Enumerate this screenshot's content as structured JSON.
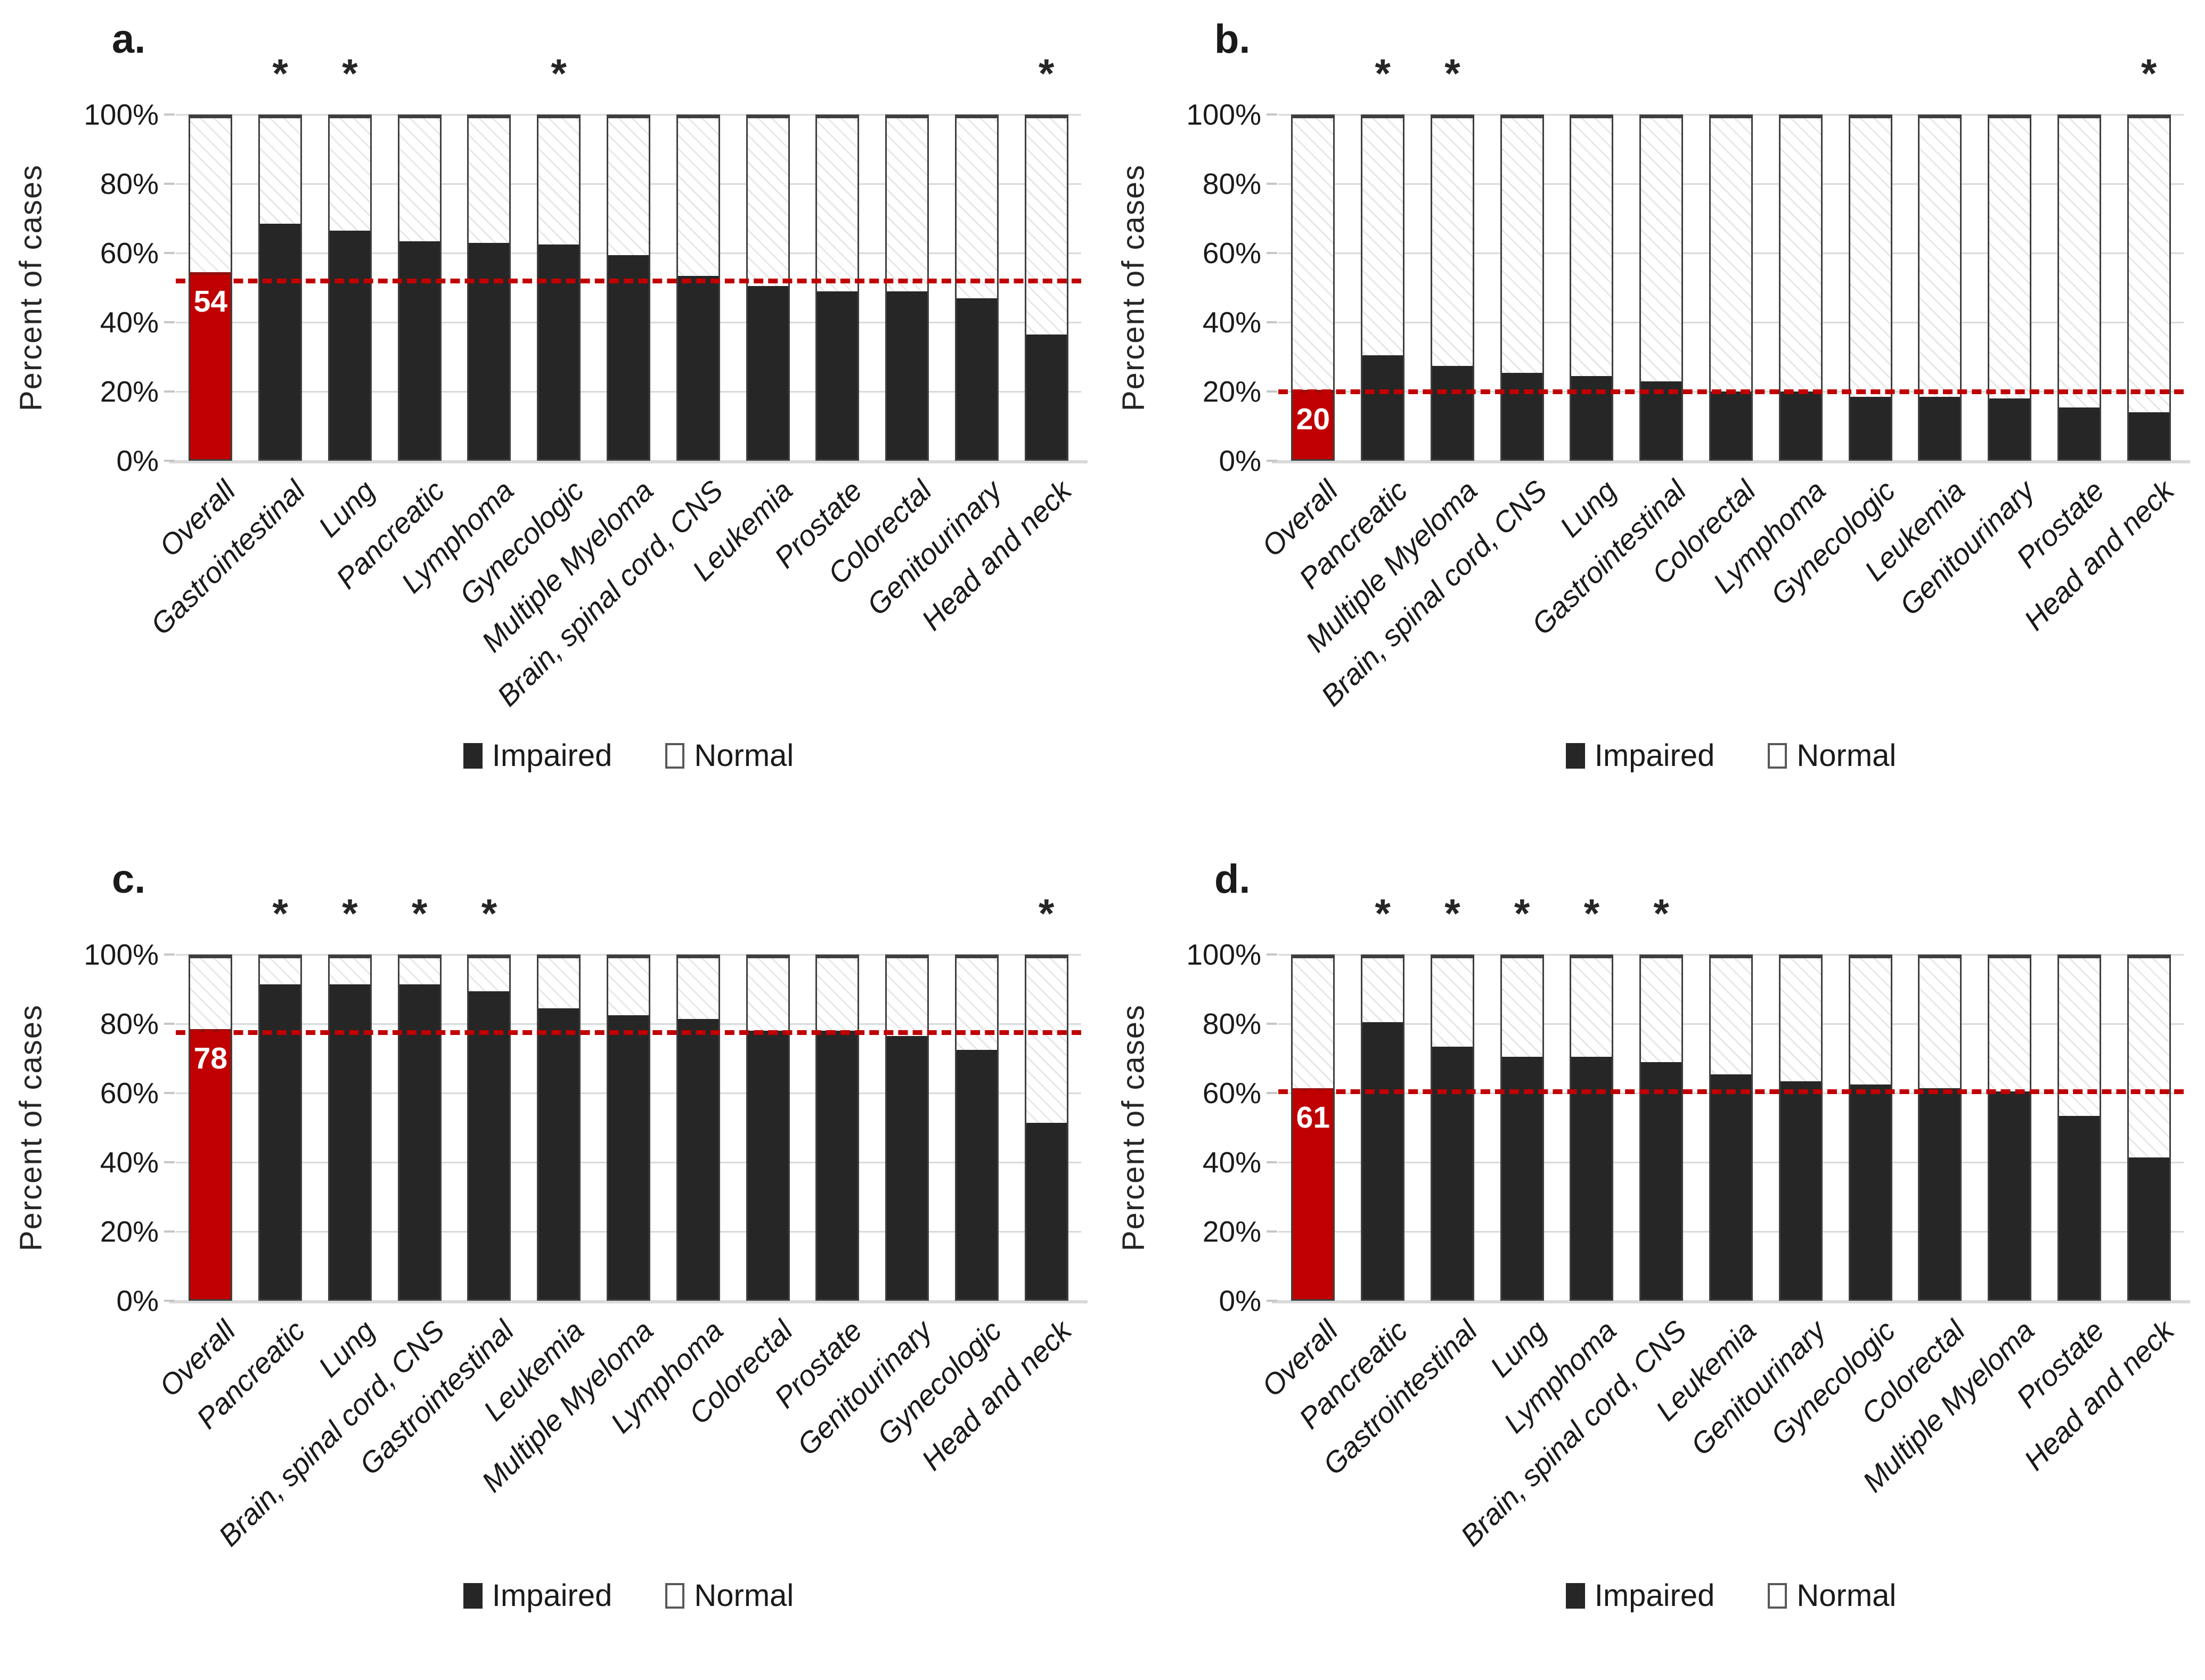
{
  "figure": {
    "ylabel": "Percent of cases",
    "ytick_pcts": [
      0,
      20,
      40,
      60,
      80,
      100
    ],
    "ytick_labels": [
      "0%",
      "20%",
      "40%",
      "60%",
      "80%",
      "100%"
    ],
    "sig_marker": "*",
    "colors": {
      "impaired": "#262626",
      "overall_bar": "#c00000",
      "reference_line": "#c00000",
      "gridline": "#d9d9d9",
      "hatch_stroke": "#e7e7e7",
      "bar_border": "#3f3f3f"
    }
  },
  "chart_data": [
    {
      "type": "bar",
      "panel_label": "a.",
      "stacked": true,
      "ylabel": "Percent of cases",
      "ylim": [
        0,
        100
      ],
      "legend": [
        "Impaired",
        "Normal"
      ],
      "legend_position": "bottom",
      "grid": true,
      "categories": [
        "Overall",
        "Gastrointestinal",
        "Lung",
        "Pancreatic",
        "Lymphoma",
        "Gynecologic",
        "Multiple Myeloma",
        "Brain, spinal cord, CNS",
        "Leukemia",
        "Prostate",
        "Colorectal",
        "Genitourinary",
        "Head and neck"
      ],
      "impaired_pct": [
        54,
        68,
        66,
        63,
        62.5,
        62,
        59,
        53,
        50,
        48.5,
        48.5,
        46.5,
        36
      ],
      "normal_pct_note": "normal = 100 - impaired",
      "significant": [
        false,
        true,
        true,
        false,
        false,
        true,
        false,
        false,
        false,
        false,
        false,
        false,
        true
      ],
      "overall_value_label": "54",
      "dashed_reference_pct": 52
    },
    {
      "type": "bar",
      "panel_label": "b.",
      "stacked": true,
      "ylabel": "Percent of cases",
      "ylim": [
        0,
        100
      ],
      "legend": [
        "Impaired",
        "Normal"
      ],
      "legend_position": "bottom",
      "grid": true,
      "categories": [
        "Overall",
        "Pancreatic",
        "Multiple Myeloma",
        "Brain, spinal cord, CNS",
        "Lung",
        "Gastrointestinal",
        "Colorectal",
        "Lymphoma",
        "Gynecologic",
        "Leukemia",
        "Genitourinary",
        "Prostate",
        "Head and neck"
      ],
      "impaired_pct": [
        20,
        30,
        27,
        25,
        24,
        22.5,
        19.5,
        19.5,
        18,
        18,
        17.5,
        15,
        13.5
      ],
      "normal_pct_note": "normal = 100 - impaired",
      "significant": [
        false,
        true,
        true,
        false,
        false,
        false,
        false,
        false,
        false,
        false,
        false,
        false,
        true
      ],
      "overall_value_label": "20",
      "dashed_reference_pct": 20
    },
    {
      "type": "bar",
      "panel_label": "c.",
      "stacked": true,
      "ylabel": "Percent of cases",
      "ylim": [
        0,
        100
      ],
      "legend": [
        "Impaired",
        "Normal"
      ],
      "legend_position": "bottom",
      "grid": true,
      "categories": [
        "Overall",
        "Pancreatic",
        "Lung",
        "Brain, spinal cord, CNS",
        "Gastrointestinal",
        "Leukemia",
        "Multiple Myeloma",
        "Lymphoma",
        "Colorectal",
        "Prostate",
        "Genitourinary",
        "Gynecologic",
        "Head and neck"
      ],
      "impaired_pct": [
        78,
        91,
        91,
        91,
        89,
        84,
        82,
        81,
        77.5,
        77.5,
        76,
        72,
        51
      ],
      "normal_pct_note": "normal = 100 - impaired",
      "significant": [
        false,
        true,
        true,
        true,
        true,
        false,
        false,
        false,
        false,
        false,
        false,
        false,
        true
      ],
      "overall_value_label": "78",
      "dashed_reference_pct": 77.5
    },
    {
      "type": "bar",
      "panel_label": "d.",
      "stacked": true,
      "ylabel": "Percent of cases",
      "ylim": [
        0,
        100
      ],
      "legend": [
        "Impaired",
        "Normal"
      ],
      "legend_position": "bottom",
      "grid": true,
      "categories": [
        "Overall",
        "Pancreatic",
        "Gastrointestinal",
        "Lung",
        "Lymphoma",
        "Brain, spinal cord, CNS",
        "Leukemia",
        "Genitourinary",
        "Gynecologic",
        "Colorectal",
        "Multiple Myeloma",
        "Prostate",
        "Head and neck"
      ],
      "impaired_pct": [
        61,
        80,
        73,
        70,
        70,
        68.5,
        65,
        63,
        62,
        61,
        60,
        53,
        41
      ],
      "normal_pct_note": "normal = 100 - impaired",
      "significant": [
        false,
        true,
        true,
        true,
        true,
        true,
        false,
        false,
        false,
        false,
        false,
        false,
        false
      ],
      "overall_value_label": "61",
      "dashed_reference_pct": 60.5
    }
  ]
}
